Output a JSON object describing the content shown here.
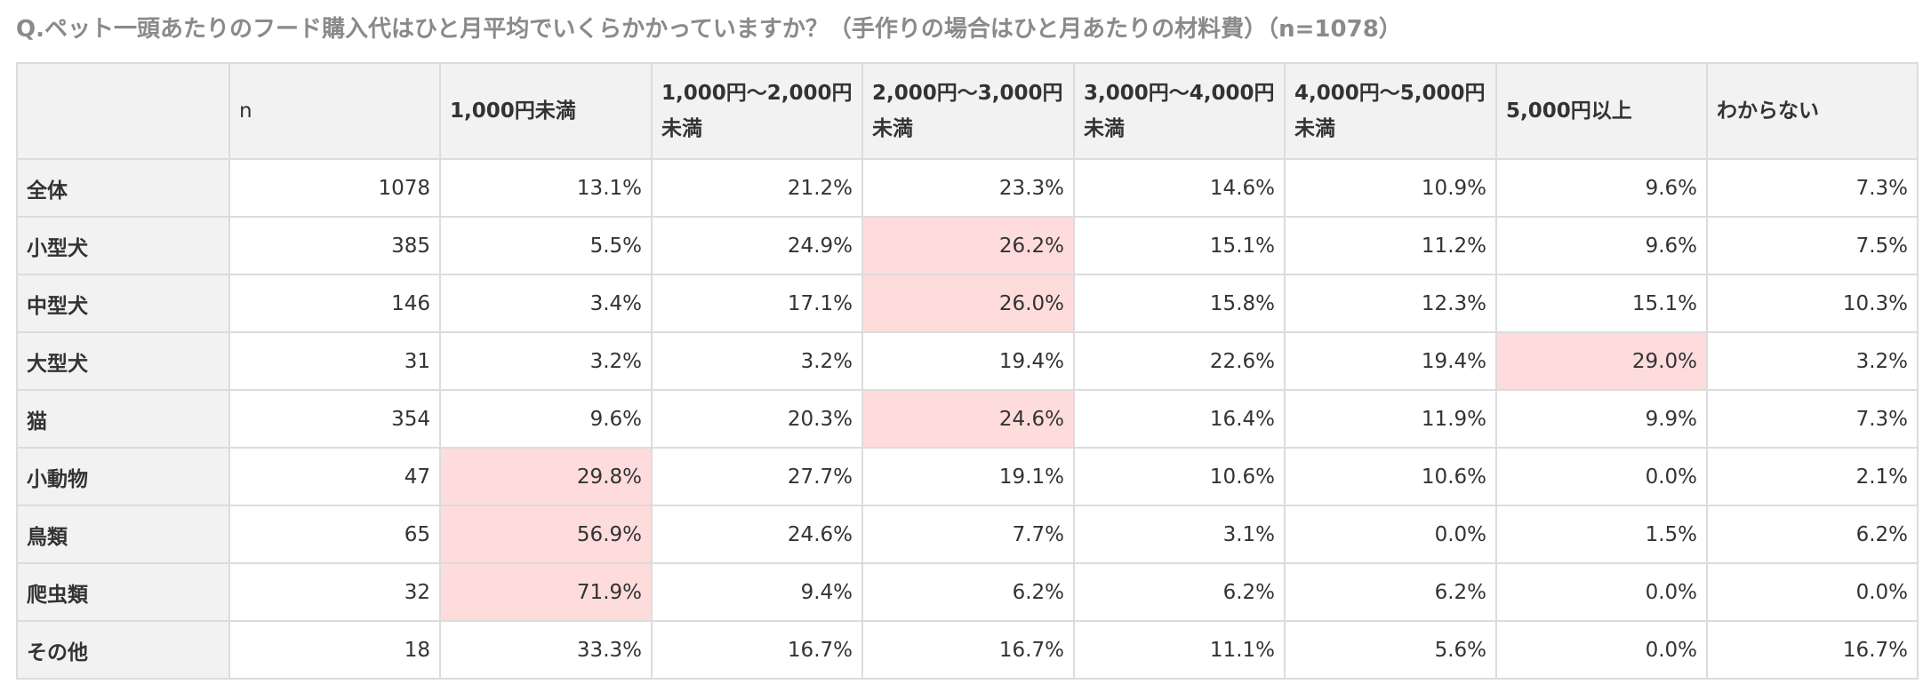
{
  "question": {
    "text": "Q.ペット一頭あたりのフード購入代はひと月平均でいくらかかっていますか？（手作りの場合はひと月あたりの材料費）",
    "n_label": "（n=1078）"
  },
  "colors": {
    "header_bg": "#f2f2f2",
    "highlight_bg": "#ffdcdc",
    "border": "#dcdcdc",
    "question_text": "#8a8a8a"
  },
  "chart_data": {
    "type": "table",
    "title": "Q.ペット一頭あたりのフード購入代はひと月平均でいくらかかっていますか？（手作りの場合はひと月あたりの材料費）（n=1078）",
    "columns": [
      {
        "line1": "",
        "line2": ""
      },
      {
        "line1": "n",
        "line2": ""
      },
      {
        "line1": "1,000円未満",
        "line2": ""
      },
      {
        "line1": "1,000円〜2,000円",
        "line2": "未満"
      },
      {
        "line1": "2,000円〜3,000円",
        "line2": "未満"
      },
      {
        "line1": "3,000円〜4,000円",
        "line2": "未満"
      },
      {
        "line1": "4,000円〜5,000円",
        "line2": "未満"
      },
      {
        "line1": "5,000円以上",
        "line2": ""
      },
      {
        "line1": "わからない",
        "line2": ""
      }
    ],
    "rows": [
      {
        "label": "全体",
        "n": "1078",
        "values": [
          "13.1%",
          "21.2%",
          "23.3%",
          "14.6%",
          "10.9%",
          "9.6%",
          "7.3%"
        ],
        "highlight": -1
      },
      {
        "label": "小型犬",
        "n": "385",
        "values": [
          "5.5%",
          "24.9%",
          "26.2%",
          "15.1%",
          "11.2%",
          "9.6%",
          "7.5%"
        ],
        "highlight": 2
      },
      {
        "label": "中型犬",
        "n": "146",
        "values": [
          "3.4%",
          "17.1%",
          "26.0%",
          "15.8%",
          "12.3%",
          "15.1%",
          "10.3%"
        ],
        "highlight": 2
      },
      {
        "label": "大型犬",
        "n": "31",
        "values": [
          "3.2%",
          "3.2%",
          "19.4%",
          "22.6%",
          "19.4%",
          "29.0%",
          "3.2%"
        ],
        "highlight": 5
      },
      {
        "label": "猫",
        "n": "354",
        "values": [
          "9.6%",
          "20.3%",
          "24.6%",
          "16.4%",
          "11.9%",
          "9.9%",
          "7.3%"
        ],
        "highlight": 2
      },
      {
        "label": "小動物",
        "n": "47",
        "values": [
          "29.8%",
          "27.7%",
          "19.1%",
          "10.6%",
          "10.6%",
          "0.0%",
          "2.1%"
        ],
        "highlight": 0
      },
      {
        "label": "鳥類",
        "n": "65",
        "values": [
          "56.9%",
          "24.6%",
          "7.7%",
          "3.1%",
          "0.0%",
          "1.5%",
          "6.2%"
        ],
        "highlight": 0
      },
      {
        "label": "爬虫類",
        "n": "32",
        "values": [
          "71.9%",
          "9.4%",
          "6.2%",
          "6.2%",
          "6.2%",
          "0.0%",
          "0.0%"
        ],
        "highlight": 0
      },
      {
        "label": "その他",
        "n": "18",
        "values": [
          "33.3%",
          "16.7%",
          "16.7%",
          "11.1%",
          "5.6%",
          "0.0%",
          "16.7%"
        ],
        "highlight": -1
      }
    ]
  }
}
